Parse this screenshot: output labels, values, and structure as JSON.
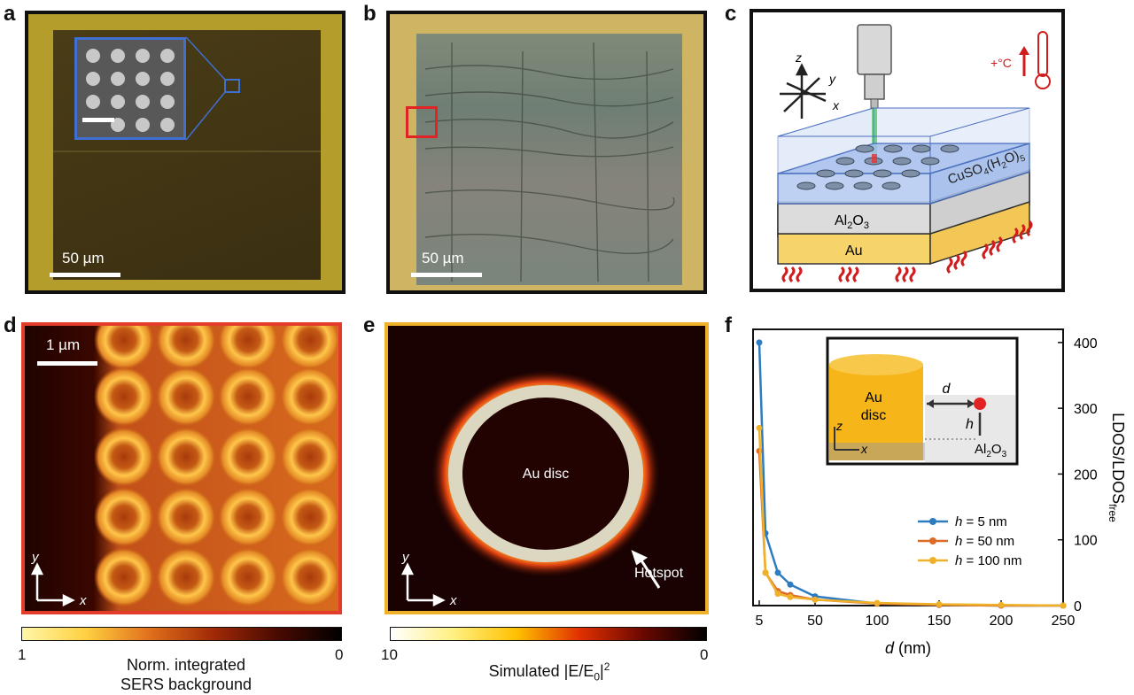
{
  "panels": {
    "a": {
      "label": "a",
      "scale": "50 µm"
    },
    "b": {
      "label": "b",
      "scale": "50 µm"
    },
    "c": {
      "label": "c",
      "layers": {
        "top": "CuSO",
        "sub4": "4",
        "mid": "(H",
        "sub2": "2",
        "end": "O)",
        "sub5": "5",
        "al": "Al",
        "al_sub2": "2",
        "al_o": "O",
        "al_sub3": "3",
        "au": "Au"
      },
      "thermo": "+°C",
      "axes": {
        "x": "x",
        "y": "y",
        "z": "z"
      }
    },
    "d": {
      "label": "d",
      "scale": "1 µm",
      "axes": {
        "x": "x",
        "y": "y"
      },
      "colorbar": {
        "min": "1",
        "max": "0",
        "title1": "Norm. integrated",
        "title2": "SERS background",
        "colors": [
          "#fff7a8",
          "#ffd040",
          "#e0701c",
          "#a02a06",
          "#4a0a02",
          "#000000"
        ]
      }
    },
    "e": {
      "label": "e",
      "center": "Au disc",
      "annot": "Hotspot",
      "axes": {
        "x": "x",
        "y": "y"
      },
      "colorbar": {
        "min": "10",
        "max": "0",
        "title": "Simulated |E/E",
        "title_sub": "0",
        "title_end": "|",
        "title_sup": "2",
        "colors": [
          "#ffffff",
          "#fff080",
          "#ffc000",
          "#e03000",
          "#6a0800",
          "#000000"
        ]
      }
    },
    "f": {
      "label": "f"
    }
  },
  "chart_data": {
    "type": "line",
    "xlabel": "d (nm)",
    "ylabel": "LDOS/LDOS",
    "ylabel_sub": "free",
    "xlim": [
      0,
      250
    ],
    "ylim": [
      0,
      420
    ],
    "xticks": [
      "5",
      "50",
      "100",
      "150",
      "200",
      "250"
    ],
    "yticks": [
      "0",
      "100",
      "200",
      "300",
      "400"
    ],
    "x": [
      5,
      10,
      20,
      30,
      50,
      100,
      150,
      200,
      250
    ],
    "series": [
      {
        "name": "h = 5 nm",
        "color": "#2e7cc0",
        "values": [
          400,
          110,
          50,
          32,
          14,
          3,
          1,
          0,
          0
        ]
      },
      {
        "name": "h = 50 nm",
        "color": "#dd6a26",
        "values": [
          235,
          50,
          22,
          16,
          9,
          3,
          1,
          0,
          0
        ]
      },
      {
        "name": "h = 100 nm",
        "color": "#f0b12a",
        "values": [
          270,
          50,
          18,
          13,
          9,
          4,
          2,
          1,
          0
        ]
      }
    ],
    "legend_prefix": "h",
    "legend": [
      "= 5 nm",
      "= 50 nm",
      "= 100 nm"
    ],
    "legend_position": "lower-right",
    "inset": {
      "disc1": "Au",
      "disc2": "disc",
      "d": "d",
      "h": "h",
      "substrate": "Al",
      "substrate_sub": "2",
      "substrate_o": "O",
      "substrate_sub3": "3",
      "z": "z",
      "x": "x"
    }
  }
}
